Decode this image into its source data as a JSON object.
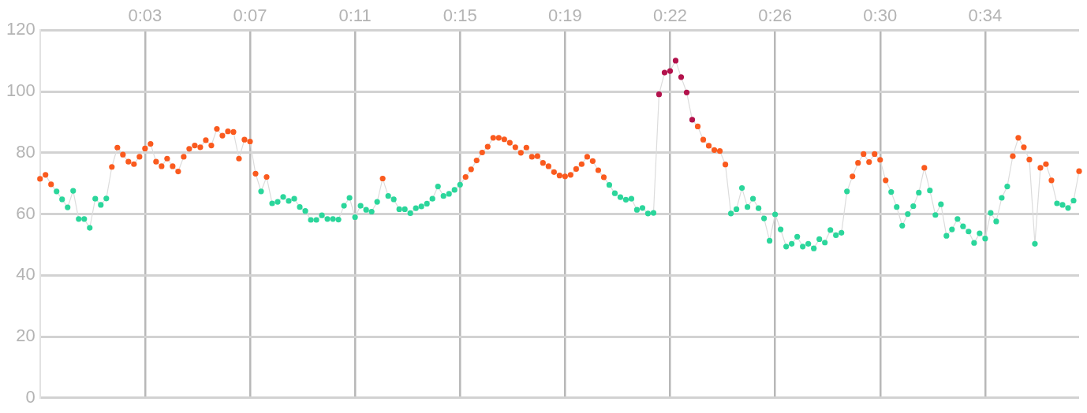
{
  "chart_data": {
    "type": "line",
    "categories": [
      null,
      null,
      null,
      null,
      null,
      null,
      null,
      null,
      null,
      null,
      null,
      null,
      null,
      null,
      null,
      null,
      null,
      null,
      null,
      "0:03",
      null,
      null,
      null,
      null,
      null,
      null,
      null,
      null,
      null,
      null,
      null,
      null,
      null,
      null,
      null,
      null,
      null,
      null,
      "0:07",
      null,
      null,
      null,
      null,
      null,
      null,
      null,
      null,
      null,
      null,
      null,
      null,
      null,
      null,
      null,
      null,
      null,
      null,
      "0:11",
      null,
      null,
      null,
      null,
      null,
      null,
      null,
      null,
      null,
      null,
      null,
      null,
      null,
      null,
      null,
      null,
      null,
      null,
      "0:15",
      null,
      null,
      null,
      null,
      null,
      null,
      null,
      null,
      null,
      null,
      null,
      null,
      null,
      null,
      null,
      null,
      null,
      null,
      "0:19",
      null,
      null,
      null,
      null,
      null,
      null,
      null,
      null,
      null,
      null,
      null,
      null,
      null,
      null,
      null,
      null,
      null,
      null,
      "0:22",
      null,
      null,
      null,
      null,
      null,
      null,
      null,
      null,
      null,
      null,
      null,
      null,
      null,
      null,
      null,
      null,
      null,
      null,
      "0:26",
      null,
      null,
      null,
      null,
      null,
      null,
      null,
      null,
      null,
      null,
      null,
      null,
      null,
      null,
      null,
      null,
      null,
      null,
      "0:30",
      null,
      null,
      null,
      null,
      null,
      null,
      null,
      null,
      null,
      null,
      null,
      null,
      null,
      null,
      null,
      null,
      null,
      null,
      "0:34",
      null,
      null,
      null,
      null,
      null,
      null,
      null,
      null,
      null,
      null,
      null,
      null,
      null,
      null,
      null,
      null,
      null
    ],
    "series": [
      {
        "color": "#dcdcdc",
        "values": [
          71.5,
          72.8,
          69.7,
          67.4,
          64.8,
          62.2,
          67.6,
          58.4,
          58.4,
          55.5,
          65.0,
          63.0,
          65.1,
          75.4,
          81.7,
          79.4,
          77.1,
          76.3,
          78.7,
          81.4,
          82.9,
          77.1,
          75.6,
          78.1,
          75.6,
          73.9,
          78.7,
          81.3,
          82.4,
          81.8,
          84.1,
          82.4,
          87.8,
          85.6,
          87.0,
          86.8,
          78.1,
          84.3,
          83.7,
          73.2,
          67.4,
          72.1,
          63.5,
          64.0,
          65.6,
          64.3,
          65.0,
          62.3,
          61.0,
          58.1,
          58.1,
          59.6,
          58.4,
          58.4,
          58.2,
          62.7,
          65.3,
          59.0,
          62.7,
          61.4,
          60.8,
          64.0,
          71.6,
          65.9,
          64.8,
          61.6,
          61.6,
          60.3,
          61.9,
          62.5,
          63.4,
          65.0,
          69.0,
          65.9,
          66.6,
          67.9,
          69.6,
          72.1,
          74.6,
          77.5,
          80.1,
          82.0,
          84.9,
          84.9,
          84.4,
          83.3,
          81.8,
          80.0,
          81.7,
          78.7,
          78.9,
          76.7,
          75.6,
          73.7,
          72.6,
          72.3,
          72.8,
          74.7,
          76.3,
          78.7,
          77.3,
          74.3,
          72.0,
          69.5,
          66.8,
          65.5,
          64.7,
          65.0,
          61.4,
          62.0,
          60.2,
          60.4,
          99.1,
          106.2,
          106.7,
          110.1,
          104.7,
          99.7,
          90.8,
          88.6,
          84.3,
          82.3,
          80.9,
          80.6,
          76.2,
          60.2,
          61.6,
          68.5,
          62.3,
          65.0,
          61.9,
          58.6,
          51.3,
          59.9,
          55.0,
          49.4,
          50.3,
          52.6,
          49.4,
          50.3,
          48.8,
          51.8,
          50.7,
          54.8,
          53.1,
          53.9,
          67.4,
          72.3,
          76.7,
          79.6,
          77.0,
          79.6,
          77.7,
          71.0,
          67.2,
          62.3,
          56.2,
          60.0,
          62.6,
          67.0,
          75.1,
          67.7,
          59.7,
          63.2,
          52.9,
          55.0,
          58.4,
          56.0,
          54.3,
          50.6,
          53.7,
          52.0,
          60.4,
          57.6,
          65.3,
          69.0,
          78.9,
          84.9,
          81.8,
          77.8,
          50.3,
          75.1,
          76.3,
          71.0,
          63.5,
          63.0,
          62.0,
          64.4,
          74.0
        ],
        "colors": [
          "#fa5a1e",
          "#fa5a1e",
          "#fa5a1e",
          "#2bd69b",
          "#2bd69b",
          "#2bd69b",
          "#2bd69b",
          "#2bd69b",
          "#2bd69b",
          "#2bd69b",
          "#2bd69b",
          "#2bd69b",
          "#2bd69b",
          "#fa5a1e",
          "#fa5a1e",
          "#fa5a1e",
          "#fa5a1e",
          "#fa5a1e",
          "#fa5a1e",
          "#fa5a1e",
          "#fa5a1e",
          "#fa5a1e",
          "#fa5a1e",
          "#fa5a1e",
          "#fa5a1e",
          "#fa5a1e",
          "#fa5a1e",
          "#fa5a1e",
          "#fa5a1e",
          "#fa5a1e",
          "#fa5a1e",
          "#fa5a1e",
          "#fa5a1e",
          "#fa5a1e",
          "#fa5a1e",
          "#fa5a1e",
          "#fa5a1e",
          "#fa5a1e",
          "#fa5a1e",
          "#fa5a1e",
          "#2bd69b",
          "#fa5a1e",
          "#2bd69b",
          "#2bd69b",
          "#2bd69b",
          "#2bd69b",
          "#2bd69b",
          "#2bd69b",
          "#2bd69b",
          "#2bd69b",
          "#2bd69b",
          "#2bd69b",
          "#2bd69b",
          "#2bd69b",
          "#2bd69b",
          "#2bd69b",
          "#2bd69b",
          "#2bd69b",
          "#2bd69b",
          "#2bd69b",
          "#2bd69b",
          "#2bd69b",
          "#fa5a1e",
          "#2bd69b",
          "#2bd69b",
          "#2bd69b",
          "#2bd69b",
          "#2bd69b",
          "#2bd69b",
          "#2bd69b",
          "#2bd69b",
          "#2bd69b",
          "#2bd69b",
          "#2bd69b",
          "#2bd69b",
          "#2bd69b",
          "#2bd69b",
          "#fa5a1e",
          "#fa5a1e",
          "#fa5a1e",
          "#fa5a1e",
          "#fa5a1e",
          "#fa5a1e",
          "#fa5a1e",
          "#fa5a1e",
          "#fa5a1e",
          "#fa5a1e",
          "#fa5a1e",
          "#fa5a1e",
          "#fa5a1e",
          "#fa5a1e",
          "#fa5a1e",
          "#fa5a1e",
          "#fa5a1e",
          "#fa5a1e",
          "#fa5a1e",
          "#fa5a1e",
          "#fa5a1e",
          "#fa5a1e",
          "#fa5a1e",
          "#fa5a1e",
          "#fa5a1e",
          "#fa5a1e",
          "#2bd69b",
          "#2bd69b",
          "#2bd69b",
          "#2bd69b",
          "#2bd69b",
          "#2bd69b",
          "#2bd69b",
          "#2bd69b",
          "#2bd69b",
          "#b3124c",
          "#b3124c",
          "#b3124c",
          "#b3124c",
          "#b3124c",
          "#b3124c",
          "#b3124c",
          "#fa5a1e",
          "#fa5a1e",
          "#fa5a1e",
          "#fa5a1e",
          "#fa5a1e",
          "#fa5a1e",
          "#2bd69b",
          "#2bd69b",
          "#2bd69b",
          "#2bd69b",
          "#2bd69b",
          "#2bd69b",
          "#2bd69b",
          "#2bd69b",
          "#2bd69b",
          "#2bd69b",
          "#2bd69b",
          "#2bd69b",
          "#2bd69b",
          "#2bd69b",
          "#2bd69b",
          "#2bd69b",
          "#2bd69b",
          "#2bd69b",
          "#2bd69b",
          "#2bd69b",
          "#2bd69b",
          "#2bd69b",
          "#fa5a1e",
          "#fa5a1e",
          "#fa5a1e",
          "#fa5a1e",
          "#fa5a1e",
          "#fa5a1e",
          "#fa5a1e",
          "#2bd69b",
          "#2bd69b",
          "#2bd69b",
          "#2bd69b",
          "#2bd69b",
          "#2bd69b",
          "#fa5a1e",
          "#2bd69b",
          "#2bd69b",
          "#2bd69b",
          "#2bd69b",
          "#2bd69b",
          "#2bd69b",
          "#2bd69b",
          "#2bd69b",
          "#2bd69b",
          "#2bd69b",
          "#2bd69b",
          "#2bd69b",
          "#2bd69b",
          "#2bd69b",
          "#2bd69b",
          "#fa5a1e",
          "#fa5a1e",
          "#fa5a1e",
          "#fa5a1e",
          "#2bd69b",
          "#fa5a1e",
          "#fa5a1e",
          "#fa5a1e",
          "#2bd69b",
          "#2bd69b",
          "#2bd69b",
          "#2bd69b",
          "#fa5a1e"
        ]
      }
    ],
    "ylim": [
      0,
      120
    ],
    "yticks": [
      0,
      20,
      40,
      60,
      80,
      100,
      120
    ],
    "grid": true,
    "legend": false,
    "marker": "circle",
    "line_style": "solid"
  }
}
